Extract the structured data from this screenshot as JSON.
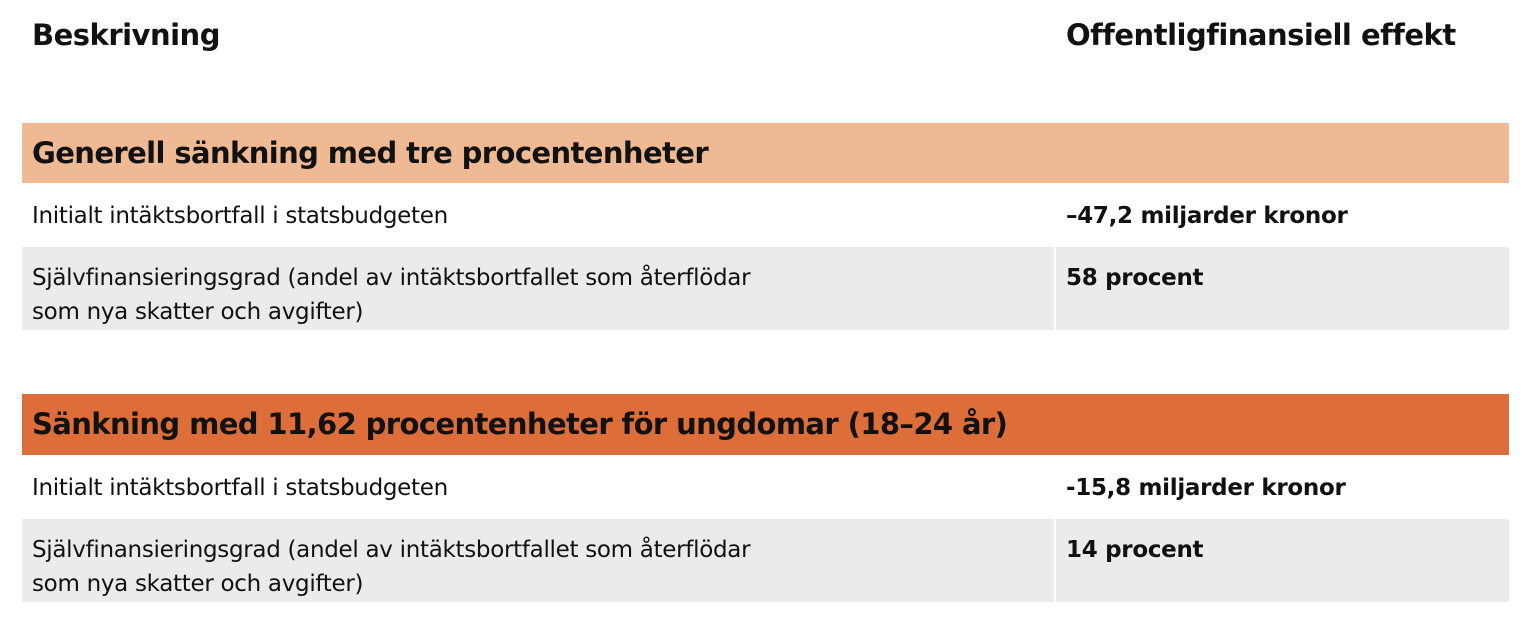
{
  "header": {
    "description": "Beskrivning",
    "effect": "Offentligfinansiell effekt"
  },
  "colors": {
    "section1": "#efb994",
    "section2": "#dd6e3a",
    "row_alt": "#ebebeb"
  },
  "sections": [
    {
      "title": "Generell sänkning med tre procentenheter",
      "rows": [
        {
          "description": "Initialt intäktsbortfall i statsbudgeten",
          "value": "–47,2 miljarder kronor"
        },
        {
          "description_line1": "Självfinansieringsgrad (andel av intäktsbortfallet som återflödar",
          "description_line2": "som nya skatter och avgifter)",
          "value": "58 procent"
        }
      ]
    },
    {
      "title": "Sänkning med 11,62 procentenheter för ungdomar (18–24 år)",
      "rows": [
        {
          "description": "Initialt intäktsbortfall i statsbudgeten",
          "value": "-15,8 miljarder kronor"
        },
        {
          "description_line1": "Självfinansieringsgrad (andel av intäktsbortfallet som återflödar",
          "description_line2": "som nya skatter och avgifter)",
          "value": "14 procent"
        }
      ]
    }
  ]
}
